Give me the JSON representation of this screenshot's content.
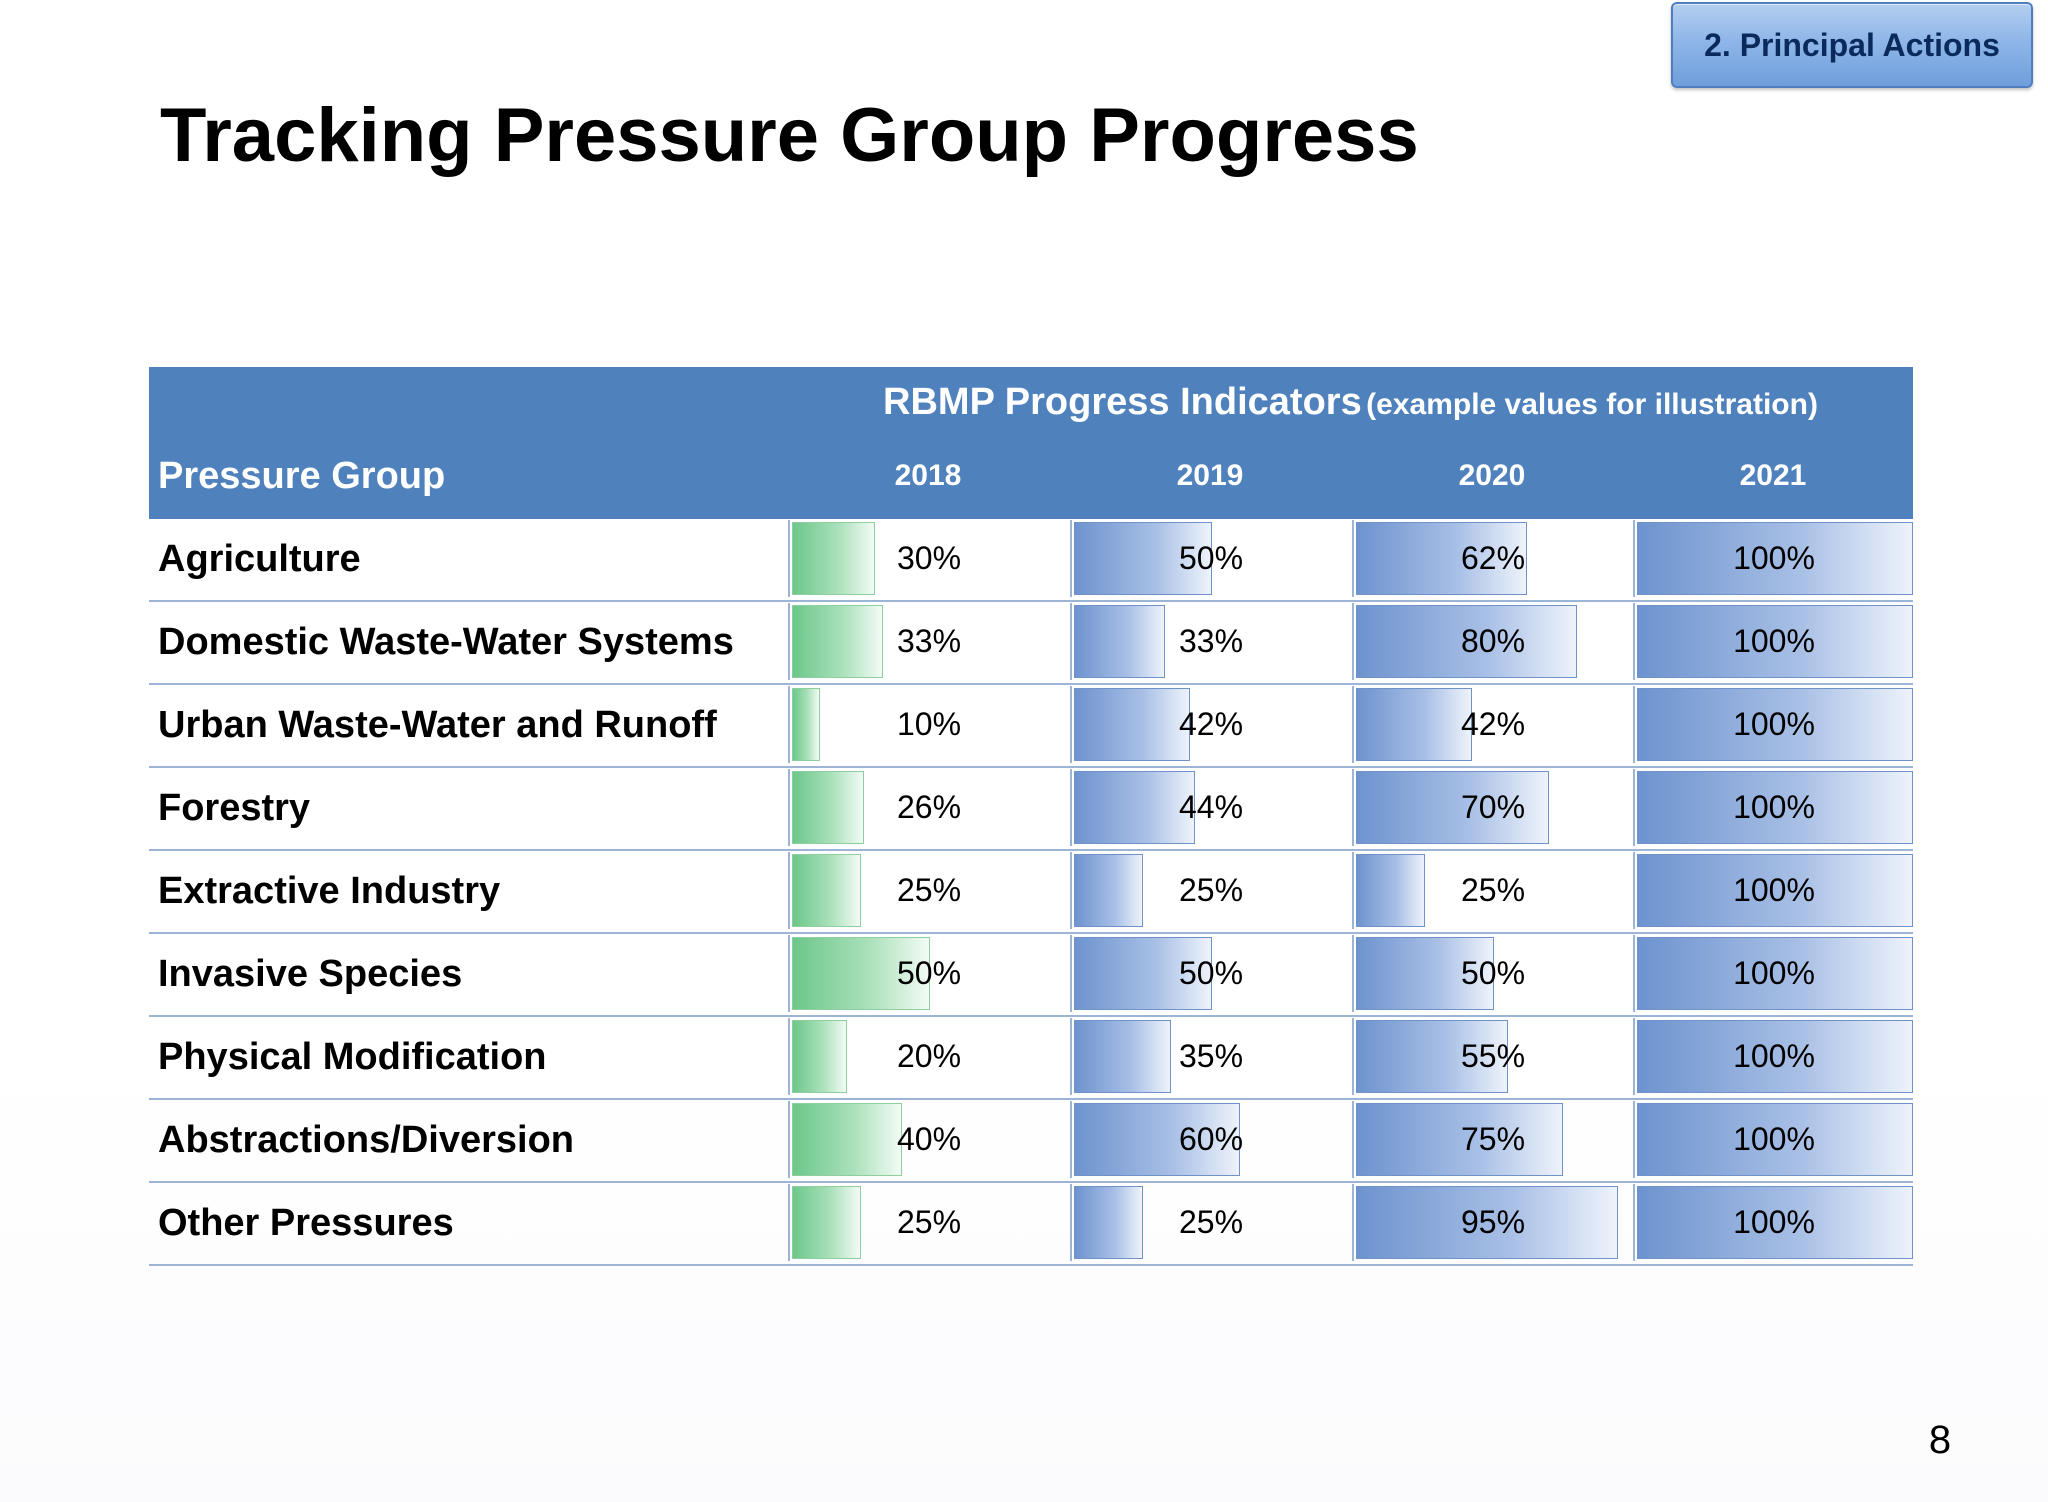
{
  "badge": {
    "label": "2. Principal Actions"
  },
  "title": "Tracking Pressure Group Progress",
  "table": {
    "indicators_title": "RBMP Progress Indicators",
    "indicators_note": "(example values for illustration)",
    "group_header": "Pressure Group",
    "years": [
      "2018",
      "2019",
      "2020",
      "2021"
    ],
    "rows": [
      {
        "label": "Agriculture",
        "values": [
          "30%",
          "50%",
          "62%",
          "100%"
        ],
        "levels": [
          30,
          50,
          62,
          100
        ]
      },
      {
        "label": "Domestic Waste-Water Systems",
        "values": [
          "33%",
          "33%",
          "80%",
          "100%"
        ],
        "levels": [
          33,
          33,
          80,
          100
        ]
      },
      {
        "label": "Urban Waste-Water and Runoff",
        "values": [
          "10%",
          "42%",
          "42%",
          "100%"
        ],
        "levels": [
          10,
          42,
          42,
          100
        ]
      },
      {
        "label": "Forestry",
        "values": [
          "26%",
          "44%",
          "70%",
          "100%"
        ],
        "levels": [
          26,
          44,
          70,
          100
        ]
      },
      {
        "label": "Extractive Industry",
        "values": [
          "25%",
          "25%",
          "25%",
          "100%"
        ],
        "levels": [
          25,
          25,
          25,
          100
        ]
      },
      {
        "label": "Invasive Species",
        "values": [
          "50%",
          "50%",
          "50%",
          "100%"
        ],
        "levels": [
          50,
          50,
          50,
          100
        ]
      },
      {
        "label": "Physical Modification",
        "values": [
          "20%",
          "35%",
          "55%",
          "100%"
        ],
        "levels": [
          20,
          35,
          55,
          100
        ]
      },
      {
        "label": "Abstractions/Diversion",
        "values": [
          "40%",
          "60%",
          "75%",
          "100%"
        ],
        "levels": [
          40,
          60,
          75,
          100
        ]
      },
      {
        "label": "Other Pressures",
        "values": [
          "25%",
          "25%",
          "95%",
          "100%"
        ],
        "levels": [
          25,
          25,
          95,
          100
        ]
      }
    ]
  },
  "colors": {
    "header_band": "#4f81bd",
    "bar_2018": "#6cc78a",
    "bar_other_years": "#6d93cf"
  },
  "page_number": "8"
}
